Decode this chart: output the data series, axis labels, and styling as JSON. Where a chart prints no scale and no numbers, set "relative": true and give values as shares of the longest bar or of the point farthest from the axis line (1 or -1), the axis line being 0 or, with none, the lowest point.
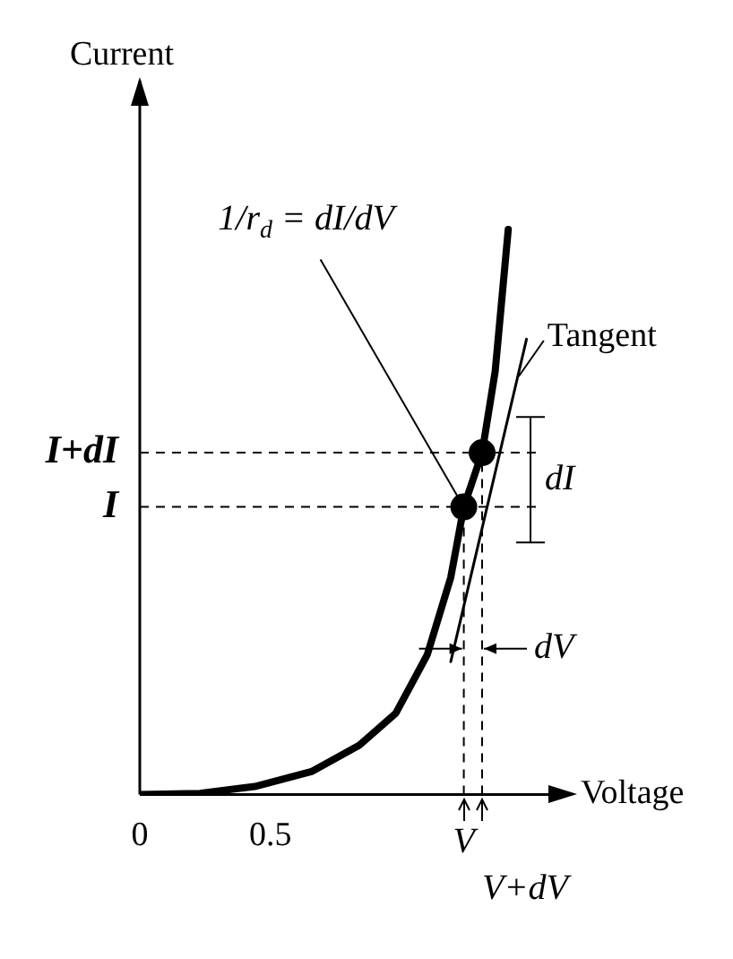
{
  "chart_data": {
    "type": "line",
    "xlabel": "Voltage",
    "ylabel": "Current",
    "relative": true,
    "grid": false,
    "legend": false,
    "xlim": [
      0,
      1.55
    ],
    "xticks": [
      0,
      0.5
    ],
    "series": [
      {
        "type": "line",
        "color": "#000000",
        "x": [
          0,
          0.23,
          0.44,
          0.66,
          0.84,
          0.98,
          1.1,
          1.19,
          1.24,
          1.31,
          1.36,
          1.41
        ],
        "values": [
          0,
          0.002,
          0.014,
          0.041,
          0.087,
          0.144,
          0.247,
          0.384,
          0.509,
          0.605,
          0.749,
          1
        ]
      },
      {
        "type": "line",
        "color": "#000000",
        "x": [
          1.19,
          1.48
        ],
        "values": [
          0.235,
          0.806
        ]
      },
      {
        "type": "scatter",
        "color": "#000000",
        "x": [
          1.24,
          1.31
        ],
        "values": [
          0.509,
          0.605
        ]
      }
    ],
    "ref_lines": [
      {
        "axis": "y",
        "value": 0.509,
        "label": "I",
        "line_style": "dashed"
      },
      {
        "axis": "y",
        "value": 0.605,
        "label": "I+dI",
        "line_style": "dashed"
      },
      {
        "axis": "x",
        "value": 1.24,
        "label": "V",
        "line_style": "dashed"
      },
      {
        "axis": "x",
        "value": 1.31,
        "label": "V+dV",
        "line_style": "dashed"
      }
    ],
    "annotations": [
      {
        "text": "1/r$_{d}$ = dI/dV",
        "x": 1.24,
        "y": 0.509
      },
      {
        "text": "Tangent",
        "x": 1.45,
        "y": 0.74
      },
      {
        "text": "dI",
        "x": 1.31,
        "y": 0.557
      },
      {
        "text": "dV",
        "x": 1.31,
        "y": 0.258
      }
    ]
  }
}
